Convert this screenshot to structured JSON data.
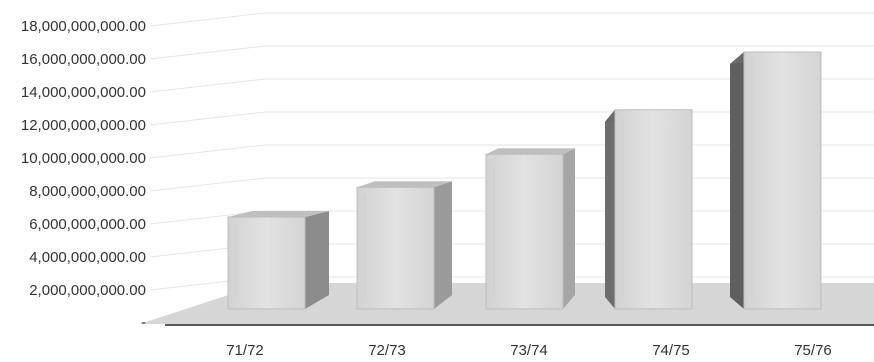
{
  "chart_data": {
    "type": "bar",
    "style": "3d-column",
    "title": "",
    "xlabel": "",
    "ylabel": "",
    "categories": [
      "71/72",
      "72/73",
      "73/74",
      "74/75",
      "75/76"
    ],
    "values": [
      6000000000,
      7800000000,
      9800000000,
      12500000000,
      16000000000
    ],
    "ylim": [
      0,
      18000000000
    ],
    "y_tick_labels": [
      "-",
      "2,000,000,000.00",
      "4,000,000,000.00",
      "6,000,000,000.00",
      "8,000,000,000.00",
      "10,000,000,000.00",
      "12,000,000,000.00",
      "14,000,000,000.00",
      "16,000,000,000.00",
      "18,000,000,000.00"
    ],
    "grid": true,
    "legend": "none",
    "colors": {
      "bar_front": "#d9d9d9",
      "bar_side": "#7f7f7f",
      "bar_top": "#bfbfbf",
      "floor": "#d6d6d6",
      "axis": "#595959"
    }
  }
}
